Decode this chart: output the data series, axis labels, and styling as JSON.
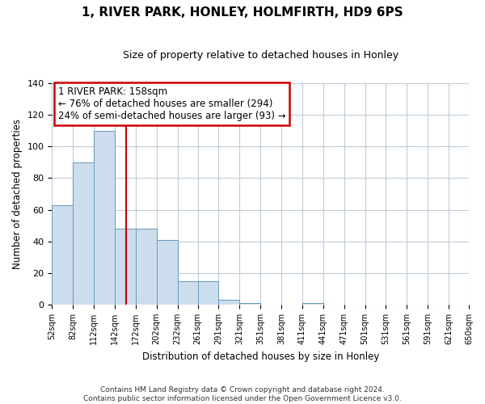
{
  "title": "1, RIVER PARK, HONLEY, HOLMFIRTH, HD9 6PS",
  "subtitle": "Size of property relative to detached houses in Honley",
  "xlabel": "Distribution of detached houses by size in Honley",
  "ylabel": "Number of detached properties",
  "bar_edges": [
    52,
    82,
    112,
    142,
    172,
    202,
    232,
    261,
    291,
    321,
    351,
    381,
    411,
    441,
    471,
    501,
    531,
    561,
    591,
    621,
    650
  ],
  "bar_heights": [
    63,
    90,
    110,
    48,
    48,
    41,
    15,
    15,
    3,
    1,
    0,
    0,
    1,
    0,
    0,
    0,
    0,
    0,
    0,
    0
  ],
  "bar_color": "#ccdded",
  "bar_edge_color": "#6699bb",
  "vline_x": 158,
  "vline_color": "#cc0000",
  "ylim": [
    0,
    140
  ],
  "yticks": [
    0,
    20,
    40,
    60,
    80,
    100,
    120,
    140
  ],
  "annotation_line1": "1 RIVER PARK: 158sqm",
  "annotation_line2": "← 76% of detached houses are smaller (294)",
  "annotation_line3": "24% of semi-detached houses are larger (93) →",
  "annotation_box_color": "#cc0000",
  "footer_line1": "Contains HM Land Registry data © Crown copyright and database right 2024.",
  "footer_line2": "Contains public sector information licensed under the Open Government Licence v3.0.",
  "tick_labels": [
    "52sqm",
    "82sqm",
    "112sqm",
    "142sqm",
    "172sqm",
    "202sqm",
    "232sqm",
    "261sqm",
    "291sqm",
    "321sqm",
    "351sqm",
    "381sqm",
    "411sqm",
    "441sqm",
    "471sqm",
    "501sqm",
    "531sqm",
    "561sqm",
    "591sqm",
    "621sqm",
    "650sqm"
  ],
  "background_color": "#ffffff",
  "grid_color": "#c0ccd8"
}
